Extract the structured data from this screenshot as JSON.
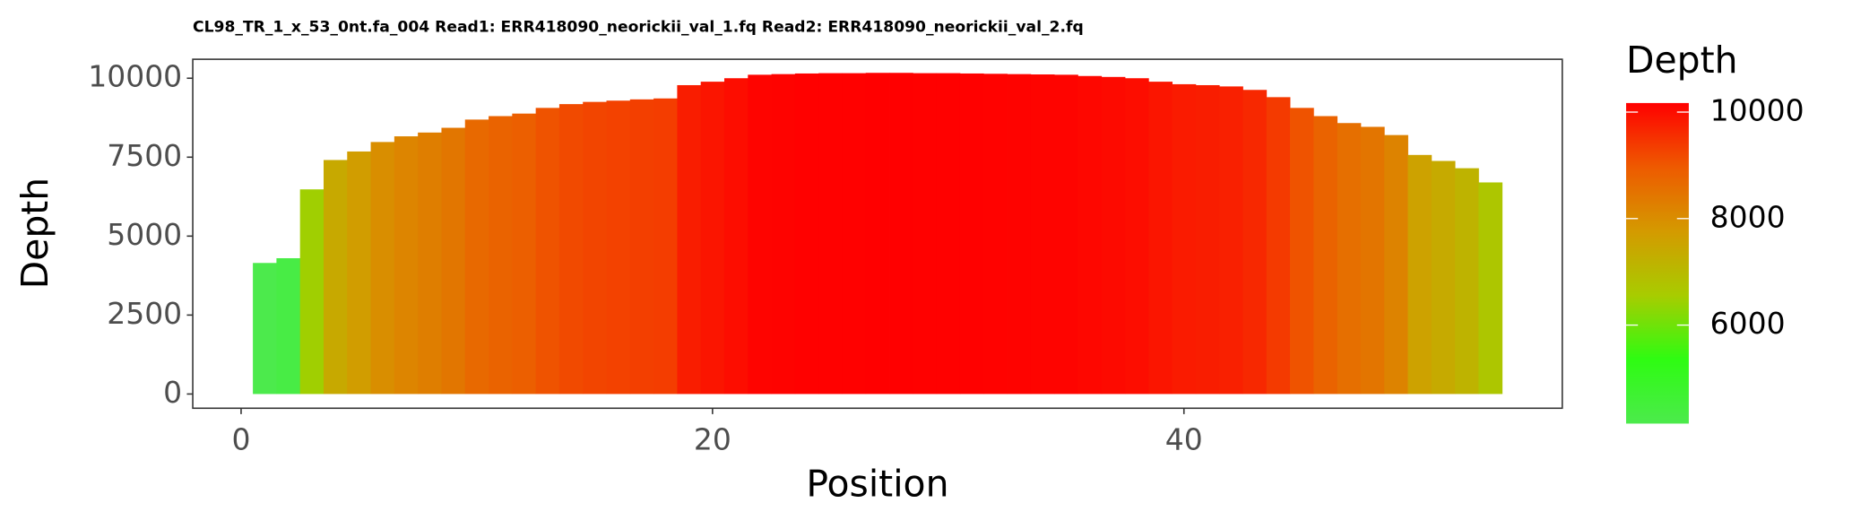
{
  "chart_data": {
    "type": "bar",
    "title": "CL98_TR_1_x_53_0nt.fa_004 Read1: ERR418090_neorickii_val_1.fq Read2: ERR418090_neorickii_val_2.fq",
    "x_label": "Position",
    "y_label": "Depth",
    "legend_title": "Depth",
    "x": [
      1,
      2,
      3,
      4,
      5,
      6,
      7,
      8,
      9,
      10,
      11,
      12,
      13,
      14,
      15,
      16,
      17,
      18,
      19,
      20,
      21,
      22,
      23,
      24,
      25,
      26,
      27,
      28,
      29,
      30,
      31,
      32,
      33,
      34,
      35,
      36,
      37,
      38,
      39,
      40,
      41,
      42,
      43,
      44,
      45,
      46,
      47,
      48,
      49,
      50,
      51,
      52,
      53
    ],
    "values": [
      4150,
      4300,
      6480,
      7410,
      7680,
      7980,
      8160,
      8280,
      8430,
      8690,
      8800,
      8880,
      9060,
      9180,
      9250,
      9290,
      9330,
      9360,
      9780,
      9890,
      10000,
      10110,
      10130,
      10150,
      10160,
      10160,
      10170,
      10170,
      10160,
      10160,
      10150,
      10140,
      10130,
      10120,
      10110,
      10070,
      10040,
      10000,
      9890,
      9810,
      9780,
      9740,
      9630,
      9400,
      9060,
      8800,
      8580,
      8460,
      8200,
      7570,
      7380,
      7150,
      6700
    ],
    "xlim": [
      -2.05,
      56.05
    ],
    "xticks": [
      0,
      20,
      40
    ],
    "ylim": [
      -450,
      10600
    ],
    "yticks": [
      0,
      2500,
      5000,
      7500,
      10000
    ],
    "colors": [
      "#4cea4c",
      "#2efc12",
      "#a8cc00",
      "#d49a00",
      "#ee5a00",
      "#ff0000"
    ],
    "color_ticks": [
      6000,
      8000,
      10000
    ]
  }
}
